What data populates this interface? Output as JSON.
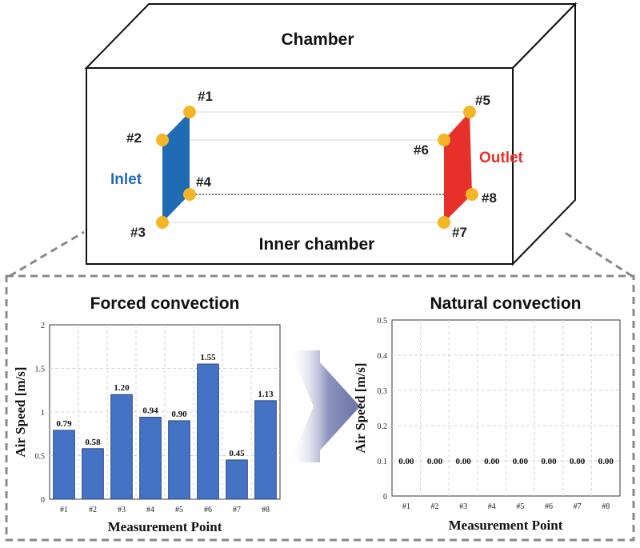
{
  "chamber": {
    "title": "Chamber",
    "inner_label": "Inner chamber",
    "inlet_label": "Inlet",
    "outlet_label": "Outlet",
    "inlet_color": "#1f6cb5",
    "outlet_color": "#e8302a",
    "point_color": "#f4b526",
    "points": [
      "#1",
      "#2",
      "#3",
      "#4",
      "#5",
      "#6",
      "#7",
      "#8"
    ]
  },
  "chart_data": [
    {
      "type": "bar",
      "title": "Forced convection",
      "xlabel": "Measurement Point",
      "ylabel": "Air Speed [m/s]",
      "categories": [
        "#1",
        "#2",
        "#3",
        "#4",
        "#5",
        "#6",
        "#7",
        "#8"
      ],
      "values": [
        0.79,
        0.58,
        1.2,
        0.94,
        0.9,
        1.55,
        0.45,
        1.13
      ],
      "value_labels": [
        "0.79",
        "0.58",
        "1.20",
        "0.94",
        "0.90",
        "1.55",
        "0.45",
        "1.13"
      ],
      "ylim": [
        0,
        2
      ],
      "yticks": [
        "0",
        "0.5",
        "1",
        "1.5",
        "2"
      ],
      "grid": true,
      "bar_color": "#4472c4"
    },
    {
      "type": "bar",
      "title": "Natural convection",
      "xlabel": "Measurement Point",
      "ylabel": "Air Speed [m/s]",
      "categories": [
        "#1",
        "#2",
        "#3",
        "#4",
        "#5",
        "#6",
        "#7",
        "#8"
      ],
      "values": [
        0,
        0,
        0,
        0,
        0,
        0,
        0,
        0
      ],
      "value_labels": [
        "0.00",
        "0.00",
        "0.00",
        "0.00",
        "0.00",
        "0.00",
        "0.00",
        "0.00"
      ],
      "ylim": [
        0,
        0.5
      ],
      "yticks": [
        "0",
        "0.1",
        "0.2",
        "0.3",
        "0.4",
        "0.5"
      ],
      "grid": true,
      "bar_color": "#4472c4"
    }
  ]
}
